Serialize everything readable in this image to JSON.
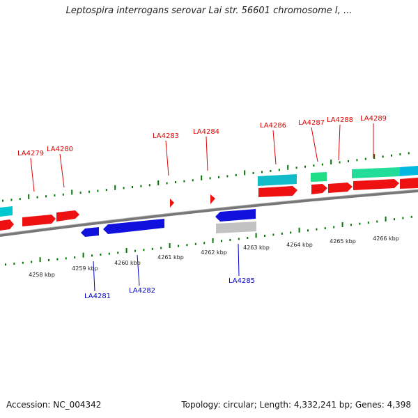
{
  "title": "Leptospira interrogans serovar Lai str. 56601 chromosome I, ...",
  "footer": {
    "accession": "Accession: NC_004342",
    "topology": "Topology: circular; Length: 4,332,241 bp; Genes: 4,398"
  },
  "colors": {
    "cds_forward": "#ee1111",
    "cds_reverse": "#1111dd",
    "cds_other_forward": "#00c0c8",
    "cds_green": "#22dd88",
    "cds_gray": "#c0c0c0",
    "label_forward": "#dd0000",
    "label_reverse": "#0000cc",
    "ticks": "#007700",
    "backbone": "#888888"
  },
  "scale": {
    "unit": "kbp",
    "labels": [
      "4258 kbp",
      "4259 kbp",
      "4260 kbp",
      "4261 kbp",
      "4262 kbp",
      "4263 kbp",
      "4264 kbp",
      "4265 kbp",
      "4266 kbp"
    ]
  },
  "genes": {
    "forward_labels": [
      "LA4279",
      "LA4280",
      "LA4283",
      "LA4284",
      "LA4286",
      "LA4287",
      "LA4288",
      "LA4289"
    ],
    "reverse_labels": [
      "LA4281",
      "LA4282",
      "LA4285"
    ]
  }
}
